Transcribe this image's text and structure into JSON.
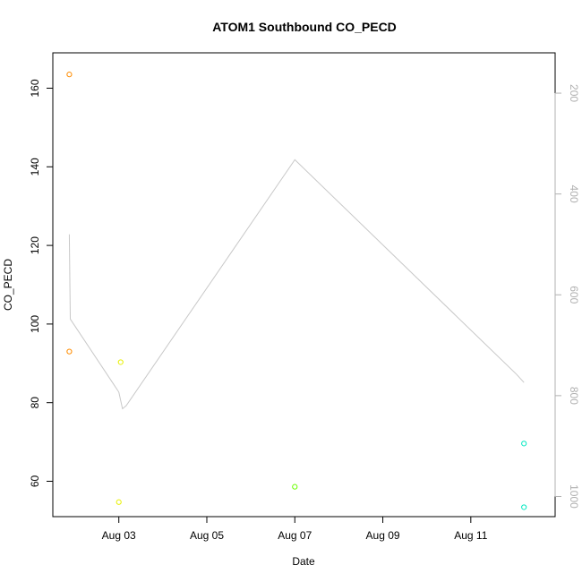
{
  "chart_data": {
    "type": "scatter",
    "title": "ATOM1 Southbound CO_PECD",
    "xlabel": "Date",
    "ylabel": "CO_PECD",
    "x_axis": {
      "type": "date",
      "range": [
        "2025-08-01T12:00",
        "2025-08-12T22:00"
      ],
      "ticks": [
        {
          "value": "2025-08-03",
          "label": "Aug 03"
        },
        {
          "value": "2025-08-05",
          "label": "Aug 05"
        },
        {
          "value": "2025-08-07",
          "label": "Aug 07"
        },
        {
          "value": "2025-08-09",
          "label": "Aug 09"
        },
        {
          "value": "2025-08-11",
          "label": "Aug 11"
        }
      ]
    },
    "y_axis": {
      "range": [
        51,
        169
      ],
      "ticks": [
        60,
        80,
        100,
        120,
        140,
        160
      ]
    },
    "y2_axis": {
      "reversed": true,
      "color": "#b0b0b0",
      "range": [
        1040,
        120
      ],
      "ticks": [
        200,
        400,
        600,
        800,
        1000
      ]
    },
    "points": [
      {
        "x": "2025-08-01T21:00",
        "y": 163.5,
        "color": "#ff8c00"
      },
      {
        "x": "2025-08-01T21:00",
        "y": 93.0,
        "color": "#ff8c00"
      },
      {
        "x": "2025-08-03T01:00",
        "y": 90.3,
        "color": "#e8f000"
      },
      {
        "x": "2025-08-03T00:00",
        "y": 54.7,
        "color": "#e8f000"
      },
      {
        "x": "2025-08-07T00:00",
        "y": 58.6,
        "color": "#6aff00"
      },
      {
        "x": "2025-08-12T05:00",
        "y": 69.6,
        "color": "#00e8c0"
      },
      {
        "x": "2025-08-12T05:00",
        "y": 53.4,
        "color": "#00e8c0"
      }
    ],
    "line_series": {
      "axis": "y2",
      "color": "#c8c8c8",
      "points": [
        {
          "x": "2025-08-01T21:00",
          "y": 480
        },
        {
          "x": "2025-08-01T21:30",
          "y": 648
        },
        {
          "x": "2025-08-03T00:00",
          "y": 793
        },
        {
          "x": "2025-08-03T02:00",
          "y": 826
        },
        {
          "x": "2025-08-03T04:00",
          "y": 820
        },
        {
          "x": "2025-08-07T00:00",
          "y": 332
        },
        {
          "x": "2025-08-12T01:00",
          "y": 758
        },
        {
          "x": "2025-08-12T05:00",
          "y": 774
        }
      ]
    }
  }
}
